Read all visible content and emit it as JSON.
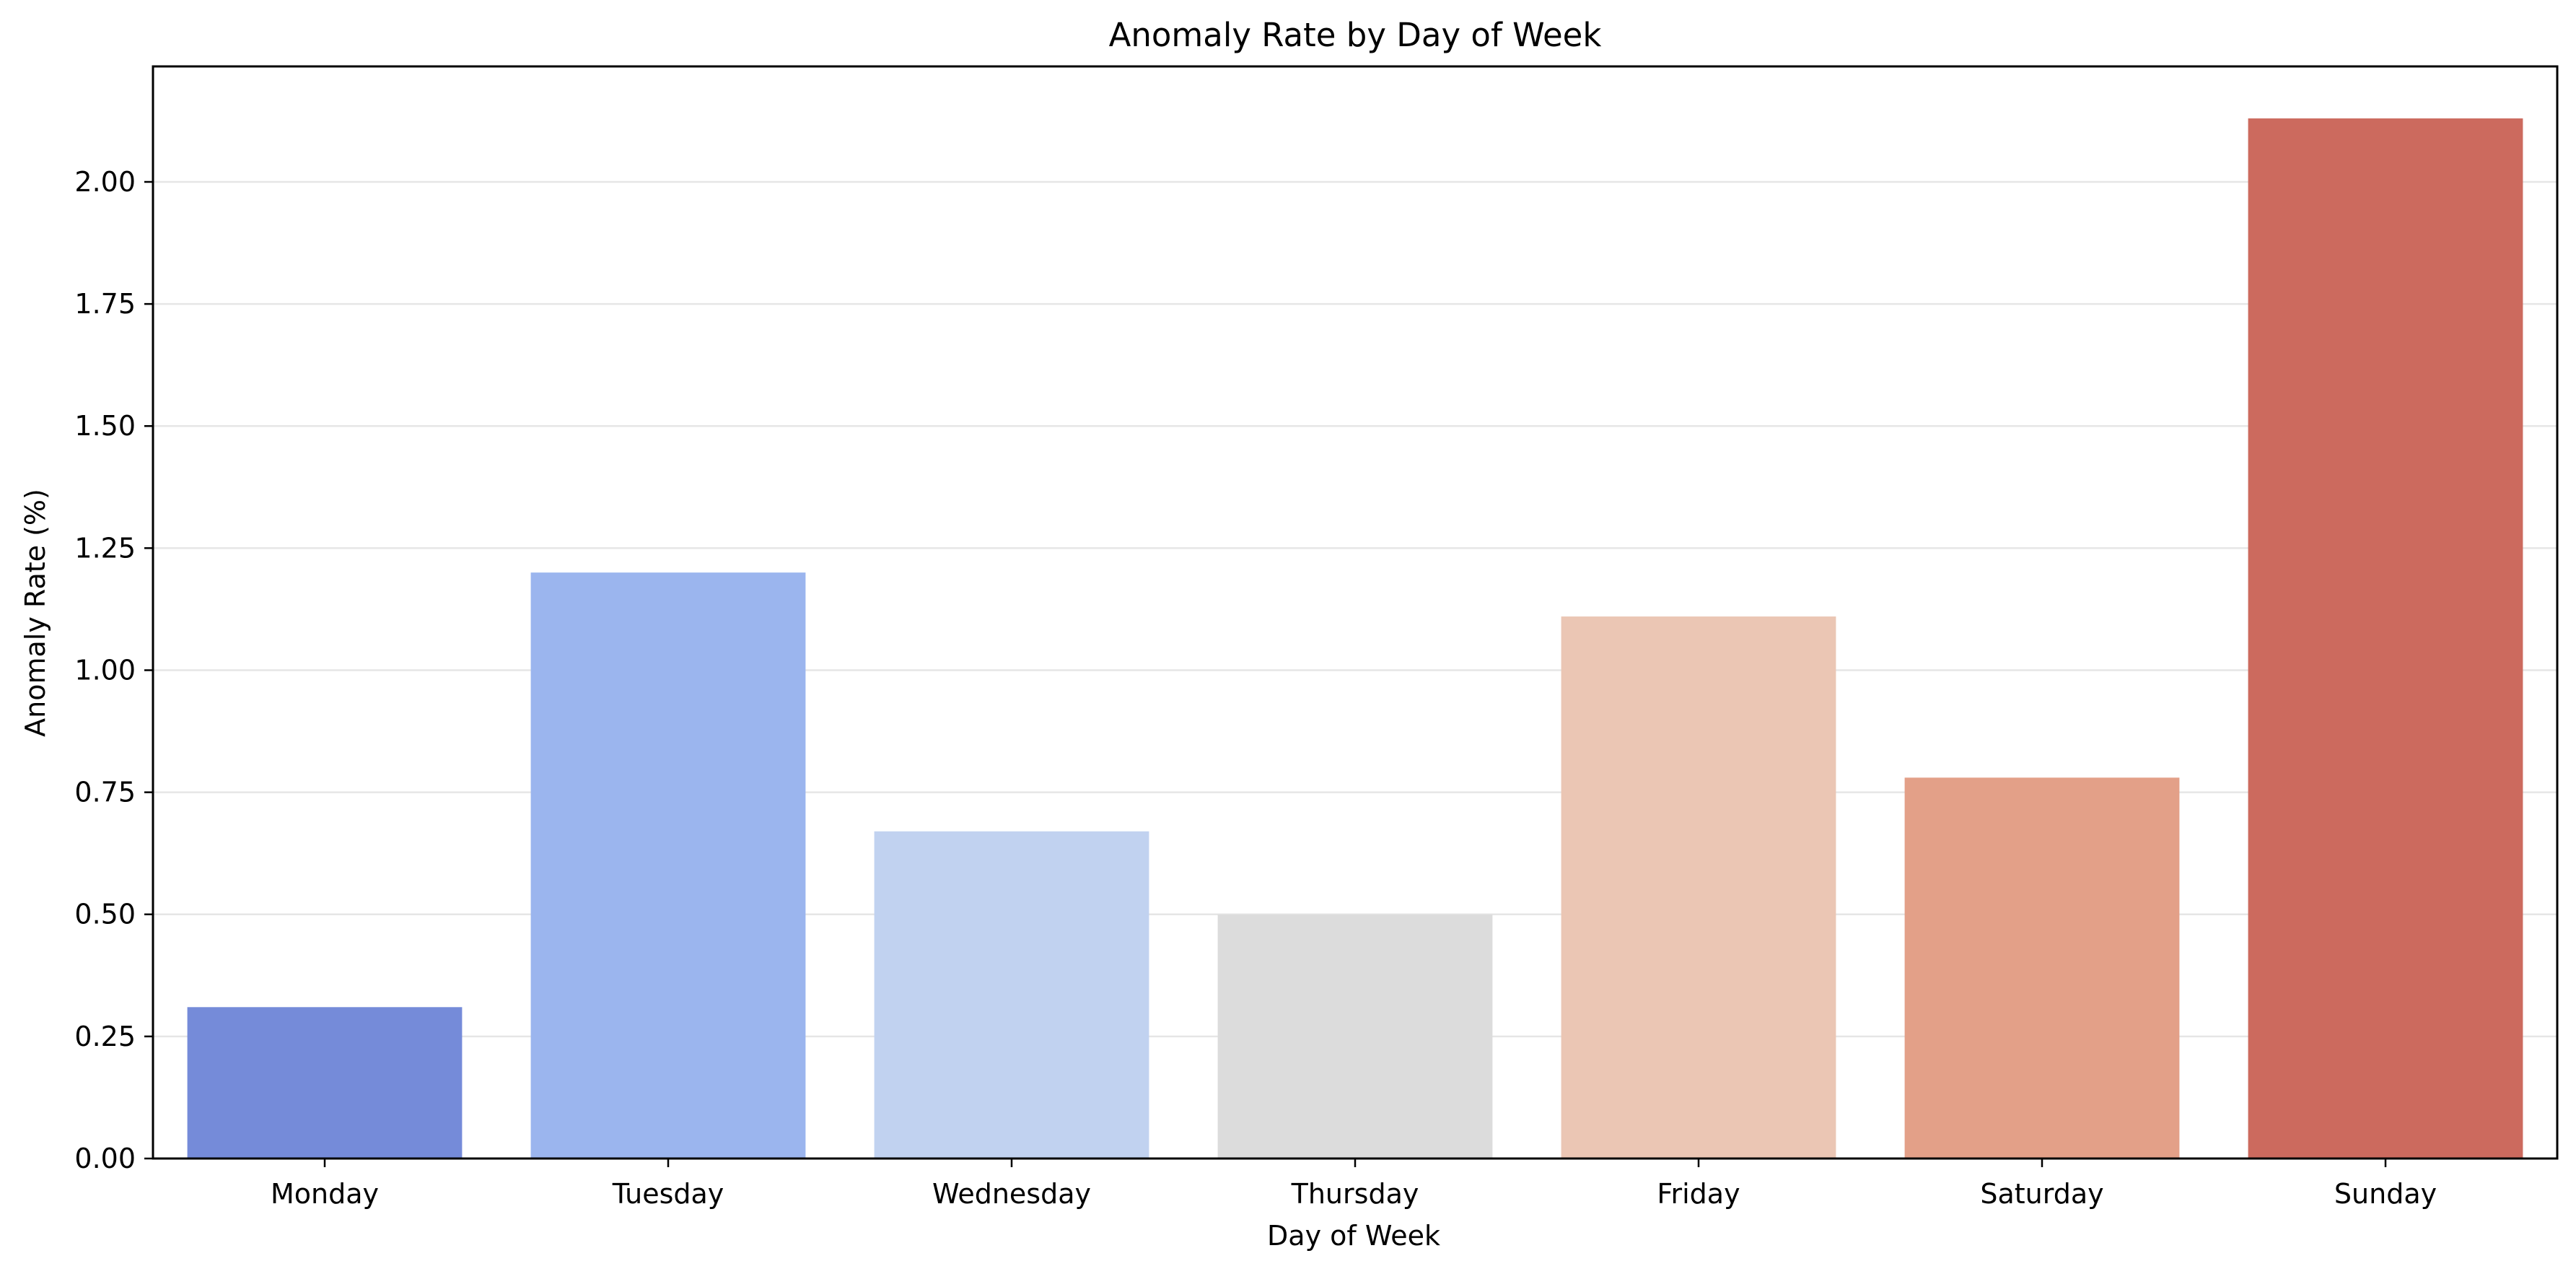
{
  "chart_data": {
    "type": "bar",
    "title": "Anomaly Rate by Day of Week",
    "xlabel": "Day of Week",
    "ylabel": "Anomaly Rate (%)",
    "categories": [
      "Monday",
      "Tuesday",
      "Wednesday",
      "Thursday",
      "Friday",
      "Saturday",
      "Sunday"
    ],
    "values": [
      0.31,
      1.2,
      0.67,
      0.5,
      1.11,
      0.78,
      2.13
    ],
    "colors": [
      "#758bd9",
      "#9bb5ee",
      "#c1d2f0",
      "#dcdcdc",
      "#ebc6b4",
      "#e3a088",
      "#cc6a5e"
    ],
    "yticks": [
      "0.00",
      "0.25",
      "0.50",
      "0.75",
      "1.00",
      "1.25",
      "1.50",
      "1.75",
      "2.00"
    ],
    "ylim": [
      0,
      2.2365
    ],
    "grid": "y-axis"
  }
}
